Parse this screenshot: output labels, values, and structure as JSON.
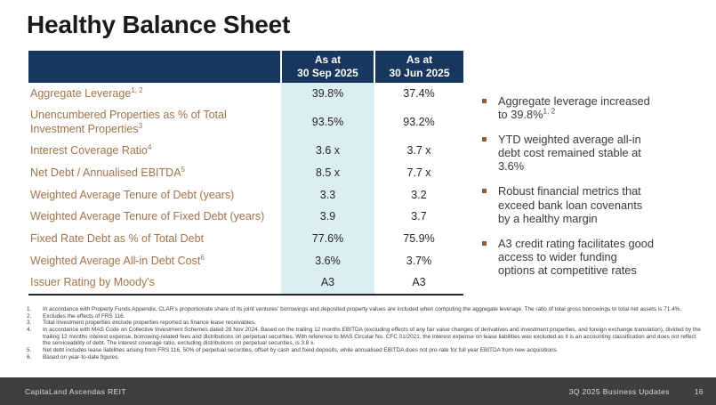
{
  "slide": {
    "title": "Healthy Balance Sheet"
  },
  "table": {
    "header": {
      "col_sep": "As at\n30 Sep 2025",
      "col_jun": "As at\n30 Jun 2025"
    },
    "rows": [
      {
        "label": "Aggregate Leverage",
        "sup": "1, 2",
        "sep": "39.8%",
        "jun": "37.4%"
      },
      {
        "label": "Unencumbered Properties as % of Total Investment Properties",
        "sup": "3",
        "sep": "93.5%",
        "jun": "93.2%"
      },
      {
        "label": "Interest Coverage Ratio",
        "sup": "4",
        "sep": "3.6 x",
        "jun": "3.7 x"
      },
      {
        "label": "Net Debt / Annualised EBITDA",
        "sup": "5",
        "sep": "8.5 x",
        "jun": "7.7 x"
      },
      {
        "label": "Weighted Average Tenure of Debt (years)",
        "sup": "",
        "sep": "3.3",
        "jun": "3.2"
      },
      {
        "label": "Weighted Average Tenure of Fixed Debt (years)",
        "sup": "",
        "sep": "3.9",
        "jun": "3.7"
      },
      {
        "label": "Fixed Rate Debt as % of Total Debt",
        "sup": "",
        "sep": "77.6%",
        "jun": "75.9%"
      },
      {
        "label": "Weighted Average All-in Debt Cost",
        "sup": "6",
        "sep": "3.6%",
        "jun": "3.7%"
      },
      {
        "label": "Issuer Rating by Moody's",
        "sup": "",
        "sep": "A3",
        "jun": "A3"
      }
    ]
  },
  "bullets": {
    "items": [
      {
        "text": "Aggregate leverage increased\nto 39.8%",
        "sup": "1, 2"
      },
      {
        "text": "YTD weighted average all-in\ndebt cost remained stable at\n3.6%",
        "sup": ""
      },
      {
        "text": "Robust financial metrics that\nexceed bank loan covenants\nby a healthy margin",
        "sup": ""
      },
      {
        "text": "A3 credit rating facilitates good\naccess to wider funding\noptions at competitive rates",
        "sup": ""
      }
    ]
  },
  "footnotes": {
    "items": [
      {
        "num": "1.",
        "text": "In accordance with Property Funds Appendix, CLAR's proportionate share of its joint ventures' borrowings and deposited property values are included when computing the aggregate leverage. The ratio of total gross borrowings to total net assets is 71.4%."
      },
      {
        "num": "2.",
        "text": "Excludes the effects of FRS 116."
      },
      {
        "num": "3.",
        "text": "Total investment properties exclude properties reported as finance lease receivables."
      },
      {
        "num": "4.",
        "text": "In accordance with MAS Code on Collective Investment Schemes dated 28 Nov 2024. Based on the trailing 12 months EBITDA (excluding effects of any fair value changes of derivatives and investment properties, and foreign exchange translation), divided by the trailing 12 months interest expense, borrowing-related fees and distributions on perpetual securities. With reference to MAS Circular No. CFC 01/2021, the interest expense on lease liabilities was excluded as it is an accounting classification and does not reflect the serviceability of debt. The interest coverage ratio, excluding distributions on perpetual securities, is 3.8 x."
      },
      {
        "num": "5.",
        "text": "Net debt includes lease liabilities arising from FRS 116, 50% of perpetual securities, offset by cash and fixed deposits, while annualised EBITDA does not pro-rate for full year EBITDA from new acquisitions."
      },
      {
        "num": "6.",
        "text": "Based on year-to-date figures."
      }
    ]
  },
  "footer": {
    "brand": "CapitaLand Ascendas REIT",
    "doc_title": "3Q 2025 Business Updates",
    "page": "16"
  },
  "colors": {
    "header_navy": "#17375e",
    "highlight_cyan": "#daeef3",
    "label_brown": "#a0734a",
    "bullet_brown": "#8c5e33",
    "footer_gray": "#3e3e3e"
  }
}
